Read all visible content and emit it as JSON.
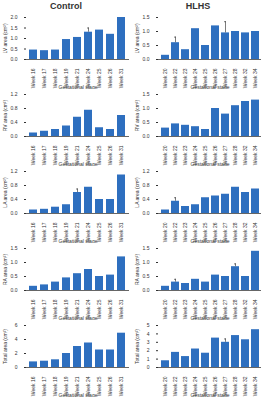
{
  "chart_data": [
    {
      "type": "bar",
      "title": "Control",
      "x_label": "Gestational stage",
      "y_label": "LV area (cm²)",
      "color": "#2e6fbf",
      "categories": [
        "Week 16",
        "Week 17",
        "Week 18",
        "Week 19",
        "Week 21",
        "Week 24",
        "Week 25",
        "Week 26",
        "Week 31"
      ],
      "values": [
        0.45,
        0.42,
        0.45,
        0.95,
        1.05,
        1.3,
        1.4,
        1.2,
        2.0
      ],
      "errors": [
        null,
        null,
        null,
        null,
        null,
        0.2,
        null,
        null,
        null
      ],
      "ylim": [
        0,
        2
      ],
      "yticks": [
        {
          "value": 0,
          "label": "0.0"
        },
        {
          "value": 0.5,
          "label": "0.5"
        },
        {
          "value": 1,
          "label": "1.0"
        },
        {
          "value": 1.5,
          "label": "1.5"
        },
        {
          "value": 2,
          "label": "2.0"
        }
      ]
    },
    {
      "type": "bar",
      "x_label": "Gestational stage",
      "y_label": "RV area (cm²)",
      "color": "#2e6fbf",
      "categories": [
        "Week 16",
        "Week 17",
        "Week 18",
        "Week 19",
        "Week 21",
        "Week 24",
        "Week 25",
        "Week 26",
        "Week 31"
      ],
      "values": [
        0.1,
        0.15,
        0.2,
        0.3,
        0.55,
        0.75,
        0.25,
        0.2,
        0.6
      ],
      "errors": [
        null,
        null,
        null,
        null,
        null,
        null,
        null,
        null,
        null
      ],
      "ylim": [
        0,
        1.2
      ],
      "yticks": [
        {
          "value": 0,
          "label": "0.0"
        },
        0.4,
        0.8,
        1.2
      ]
    },
    {
      "type": "bar",
      "x_label": "Gestational stage",
      "y_label": "LA area (cm²)",
      "color": "#2e6fbf",
      "categories": [
        "Week 16",
        "Week 17",
        "Week 18",
        "Week 19",
        "Week 21",
        "Week 24",
        "Week 25",
        "Week 26",
        "Week 31"
      ],
      "values": [
        0.1,
        0.12,
        0.18,
        0.25,
        0.6,
        0.75,
        0.4,
        0.4,
        1.1
      ],
      "errors": [
        null,
        null,
        null,
        null,
        0.1,
        null,
        null,
        null,
        null
      ],
      "ylim": [
        0,
        1.2
      ],
      "yticks": [
        {
          "value": 0,
          "label": "0.0"
        },
        0.4,
        0.8,
        1.2
      ]
    },
    {
      "type": "bar",
      "x_label": "Gestational stage",
      "y_label": "RA area (cm²)",
      "color": "#2e6fbf",
      "categories": [
        "Week 16",
        "Week 17",
        "Week 18",
        "Week 19",
        "Week 21",
        "Week 24",
        "Week 25",
        "Week 26",
        "Week 31"
      ],
      "values": [
        0.15,
        0.2,
        0.3,
        0.45,
        0.6,
        0.75,
        0.5,
        0.55,
        1.2
      ],
      "errors": [
        null,
        null,
        null,
        null,
        null,
        null,
        null,
        null,
        null
      ],
      "ylim": [
        0,
        1.5
      ],
      "yticks": [
        {
          "value": 0,
          "label": "0.0"
        },
        0.5,
        {
          "value": 1,
          "label": "1.0"
        },
        1.5
      ]
    },
    {
      "type": "bar",
      "x_label": "Gestational stage",
      "y_label": "Total area (cm²)",
      "color": "#2e6fbf",
      "categories": [
        "Week 16",
        "Week 17",
        "Week 18",
        "Week 19",
        "Week 21",
        "Week 24",
        "Week 25",
        "Week 26",
        "Week 31"
      ],
      "values": [
        0.8,
        0.9,
        1.1,
        2.0,
        3.0,
        3.5,
        2.5,
        2.5,
        4.9
      ],
      "errors": [
        null,
        null,
        null,
        null,
        null,
        null,
        null,
        null,
        null
      ],
      "ylim": [
        0,
        6
      ],
      "yticks": [
        0,
        2,
        4,
        6
      ]
    },
    {
      "type": "bar",
      "title": "HLHS",
      "x_label": "Gestational stage",
      "y_label": "LV area (cm²)",
      "color": "#2e6fbf",
      "categories": [
        "Week 20",
        "Week 22",
        "Week 23",
        "Week 24",
        "Week 25",
        "Week 26",
        "Week 27",
        "Week 28",
        "Week 32",
        "Week 34"
      ],
      "values": [
        0.15,
        0.6,
        0.35,
        1.1,
        0.5,
        1.2,
        0.95,
        1.0,
        0.95,
        1.0
      ],
      "errors": [
        null,
        0.2,
        null,
        null,
        null,
        null,
        0.4,
        null,
        null,
        null
      ],
      "ylim": [
        0,
        1.5
      ],
      "yticks": [
        {
          "value": 0,
          "label": "0.0"
        },
        0.5,
        {
          "value": 1,
          "label": "1.0"
        },
        1.5
      ]
    },
    {
      "type": "bar",
      "x_label": "Gestational stage",
      "y_label": "RV area (cm²)",
      "color": "#2e6fbf",
      "categories": [
        "Week 20",
        "Week 22",
        "Week 23",
        "Week 24",
        "Week 25",
        "Week 26",
        "Week 27",
        "Week 28",
        "Week 32",
        "Week 34"
      ],
      "values": [
        0.3,
        0.45,
        0.4,
        0.35,
        0.25,
        1.0,
        0.8,
        1.1,
        1.25,
        1.3
      ],
      "errors": [
        null,
        null,
        null,
        null,
        null,
        null,
        null,
        null,
        null,
        null
      ],
      "ylim": [
        0,
        1.5
      ],
      "yticks": [
        {
          "value": 0,
          "label": "0.0"
        },
        0.5,
        {
          "value": 1,
          "label": "1.0"
        },
        1.5
      ]
    },
    {
      "type": "bar",
      "x_label": "Gestational stage",
      "y_label": "LA area (cm²)",
      "color": "#2e6fbf",
      "categories": [
        "Week 20",
        "Week 22",
        "Week 23",
        "Week 24",
        "Week 25",
        "Week 26",
        "Week 27",
        "Week 28",
        "Week 32",
        "Week 34"
      ],
      "values": [
        0.1,
        0.35,
        0.2,
        0.25,
        0.45,
        0.5,
        0.55,
        0.75,
        0.6,
        0.7
      ],
      "errors": [
        null,
        0.1,
        null,
        null,
        null,
        null,
        null,
        null,
        null,
        null
      ],
      "ylim": [
        0,
        1.2
      ],
      "yticks": [
        {
          "value": 0,
          "label": "0.0"
        },
        0.4,
        0.8,
        1.2
      ]
    },
    {
      "type": "bar",
      "x_label": "Gestational stage",
      "y_label": "RA area (cm²)",
      "color": "#2e6fbf",
      "categories": [
        "Week 20",
        "Week 22",
        "Week 23",
        "Week 24",
        "Week 25",
        "Week 26",
        "Week 27",
        "Week 28",
        "Week 32",
        "Week 34"
      ],
      "values": [
        0.15,
        0.3,
        0.25,
        0.4,
        0.3,
        0.55,
        0.5,
        0.85,
        0.5,
        1.4
      ],
      "errors": [
        null,
        0.1,
        null,
        null,
        null,
        null,
        null,
        0.1,
        null,
        null
      ],
      "ylim": [
        0,
        1.5
      ],
      "yticks": [
        {
          "value": 0,
          "label": "0.0"
        },
        0.5,
        {
          "value": 1,
          "label": "1.0"
        },
        1.5
      ]
    },
    {
      "type": "bar",
      "x_label": "Gestational stage",
      "y_label": "Total area (cm²)",
      "color": "#2e6fbf",
      "categories": [
        "Week 20",
        "Week 22",
        "Week 23",
        "Week 24",
        "Week 25",
        "Week 26",
        "Week 27",
        "Week 28",
        "Week 32",
        "Week 34"
      ],
      "values": [
        0.8,
        1.8,
        1.3,
        2.2,
        1.7,
        3.5,
        3.0,
        3.8,
        3.3,
        4.5
      ],
      "errors": [
        null,
        null,
        null,
        null,
        null,
        null,
        0.4,
        null,
        null,
        null
      ],
      "ylim": [
        0,
        5
      ],
      "yticks": [
        0,
        1,
        2,
        3,
        4,
        5
      ]
    }
  ]
}
